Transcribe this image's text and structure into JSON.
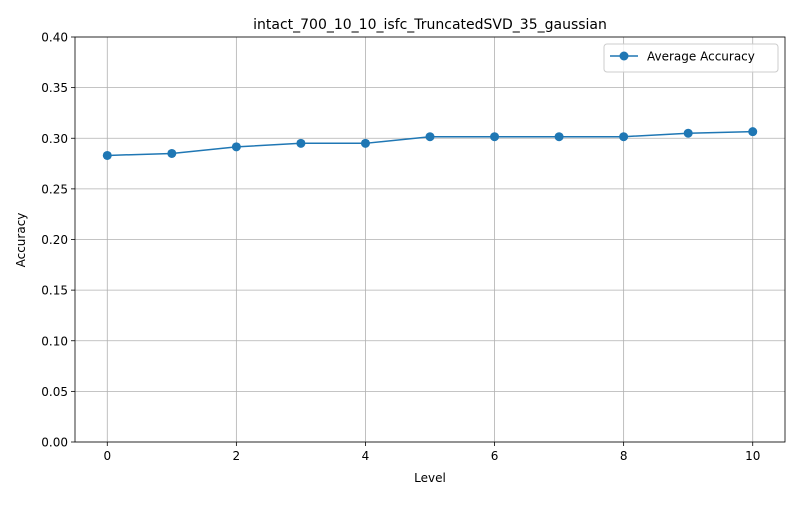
{
  "chart_data": {
    "type": "line",
    "title": "intact_700_10_10_isfc_TruncatedSVD_35_gaussian",
    "xlabel": "Level",
    "ylabel": "Accuracy",
    "xlim": [
      -0.5,
      10.5
    ],
    "ylim": [
      0,
      0.4
    ],
    "xticks": [
      0,
      2,
      4,
      6,
      8,
      10
    ],
    "xtick_labels": [
      "0",
      "2",
      "4",
      "6",
      "8",
      "10"
    ],
    "yticks": [
      0,
      0.05,
      0.1,
      0.15,
      0.2,
      0.25,
      0.3,
      0.35,
      0.4
    ],
    "ytick_labels": [
      "0.00",
      "0.05",
      "0.10",
      "0.15",
      "0.20",
      "0.25",
      "0.30",
      "0.35",
      "0.40"
    ],
    "grid": true,
    "legend_position": "top-right",
    "series": [
      {
        "name": "Average Accuracy",
        "color": "#1f77b4",
        "marker": "circle",
        "x": [
          0,
          1,
          2,
          3,
          4,
          5,
          6,
          7,
          8,
          9,
          10
        ],
        "y": [
          0.283,
          0.285,
          0.2915,
          0.295,
          0.295,
          0.3015,
          0.3015,
          0.3015,
          0.3015,
          0.305,
          0.3065
        ]
      }
    ]
  }
}
